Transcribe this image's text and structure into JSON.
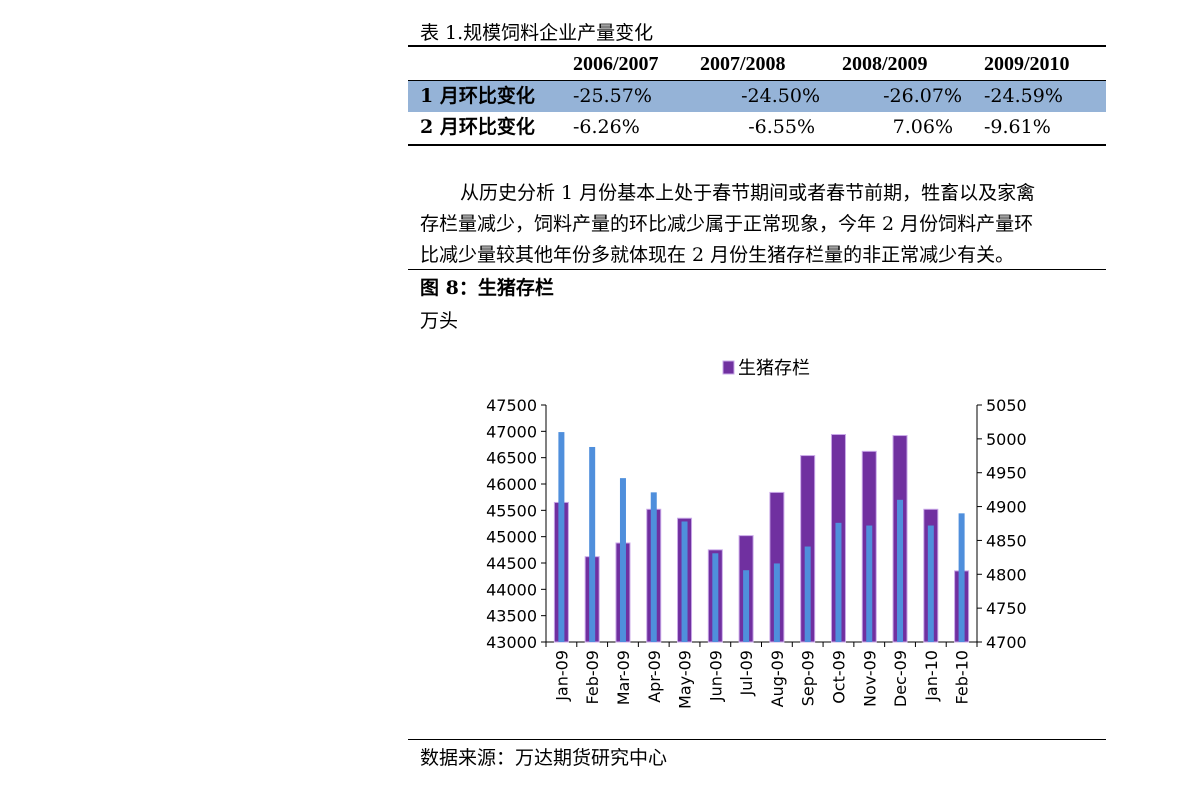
{
  "table": {
    "caption": "表 1.规模饲料企业产量变化",
    "headers": [
      "2006/2007",
      "2007/2008",
      "2008/2009",
      "2009/2010"
    ],
    "rows": [
      {
        "label": "1 月环比变化",
        "values": [
          "-25.57%",
          "-24.50%",
          "-26.07%",
          "-24.59%"
        ],
        "highlight": true
      },
      {
        "label": "2 月环比变化",
        "values": [
          "-6.26%",
          "-6.55%",
          "7.06%",
          "-9.61%"
        ],
        "highlight": false
      }
    ],
    "highlight_color": "#95b3d7"
  },
  "paragraph": {
    "lines": [
      "从历史分析 1 月份基本上处于春节期间或者春节前期，牲畜以及家禽",
      "存栏量减少，饲料产量的环比减少属于正常现象，今年 2 月份饲料产量环",
      "比减少量较其他年份多就体现在 2 月份生猪存栏量的非正常减少有关。"
    ]
  },
  "figure": {
    "title": "图 8：生猪存栏",
    "unit": "万头"
  },
  "chart_data": {
    "type": "bar",
    "title": "",
    "legend": [
      "生猪存栏"
    ],
    "legend_position": "top-center",
    "categories": [
      "Jan-09",
      "Feb-09",
      "Mar-09",
      "Apr-09",
      "May-09",
      "Jun-09",
      "Jul-09",
      "Aug-09",
      "Sep-09",
      "Oct-09",
      "Nov-09",
      "Dec-09",
      "Jan-10",
      "Feb-10"
    ],
    "series": [
      {
        "name": "生猪存栏",
        "axis": "left",
        "color": "#7030a0",
        "values": [
          45650,
          44620,
          44880,
          45520,
          45350,
          44750,
          45020,
          45840,
          46540,
          46940,
          46620,
          46920,
          45520,
          44350
        ]
      },
      {
        "name": "",
        "axis": "right",
        "color": "#4f8fdc",
        "values": [
          5010,
          4988,
          4942,
          4921,
          4878,
          4831,
          4806,
          4816,
          4841,
          4876,
          4872,
          4910,
          4872,
          4890
        ]
      }
    ],
    "yleft": {
      "min": 43000,
      "max": 47500,
      "ticks": [
        "43000",
        "43500",
        "44000",
        "44500",
        "45000",
        "45500",
        "46000",
        "46500",
        "47000",
        "47500"
      ]
    },
    "yright": {
      "min": 4700,
      "max": 5050,
      "ticks": [
        "4700",
        "4750",
        "4800",
        "4850",
        "4900",
        "4950",
        "5000",
        "5050"
      ]
    }
  },
  "source": "数据来源：万达期货研究中心"
}
